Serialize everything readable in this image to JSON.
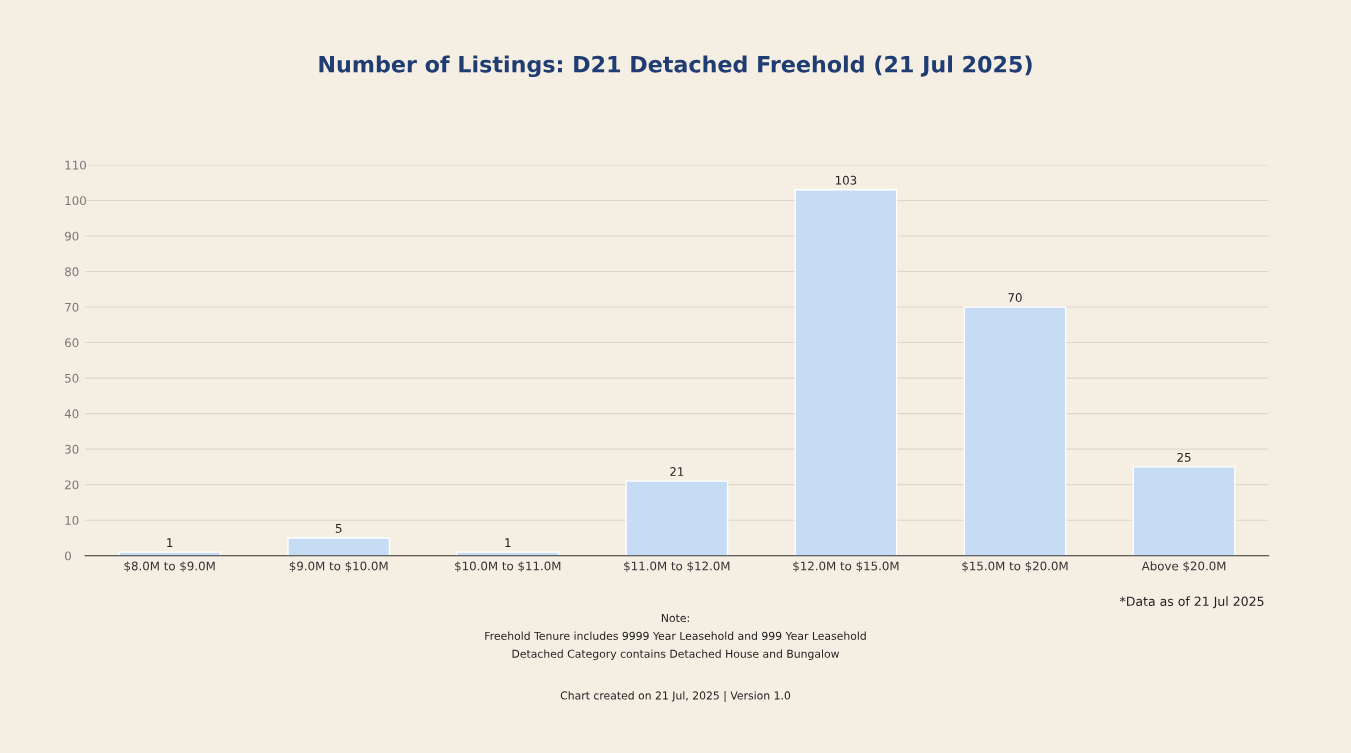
{
  "chart_data": {
    "type": "bar",
    "title": "Number of Listings: D21 Detached Freehold (21 Jul 2025)",
    "categories": [
      "$8.0M to $9.0M",
      "$9.0M to $10.0M",
      "$10.0M to $11.0M",
      "$11.0M to $12.0M",
      "$12.0M to $15.0M",
      "$15.0M to $20.0M",
      "Above $20.0M"
    ],
    "values": [
      1,
      5,
      1,
      21,
      103,
      70,
      25
    ],
    "color": "#c6dcf4",
    "ylim": [
      0,
      110
    ],
    "yticks": [
      0,
      10,
      20,
      30,
      40,
      50,
      60,
      70,
      80,
      90,
      100,
      110
    ],
    "grid": "y",
    "data_labels": true,
    "annotations": [
      "*Data as of 21 Jul 2025",
      "Note:\nFreehold Tenure includes 9999 Year Leasehold and 999 Year Leasehold\nDetached Category contains Detached House and Bungalow",
      "Chart created on 21 Jul, 2025 | Version 1.0"
    ]
  }
}
